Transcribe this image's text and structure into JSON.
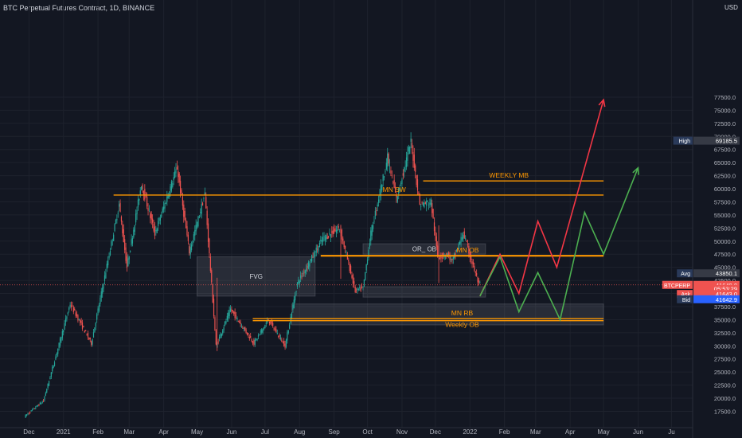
{
  "header": {
    "title": "BTC Perpetual Futures Contract, 1D, BINANCE",
    "currency": "USD"
  },
  "colors": {
    "bg": "#131722",
    "up": "#26a69a",
    "down": "#ef5350",
    "orange": "#ff9800",
    "green_path": "#4caf50",
    "red_path": "#f23645",
    "text": "#b2b5be"
  },
  "chart_data": {
    "type": "candlestick",
    "symbol": "BTCPERP",
    "x_tick_labels": [
      "Dec",
      "2021",
      "Feb",
      "Mar",
      "Apr",
      "May",
      "Jun",
      "Jul",
      "Aug",
      "Sep",
      "Oct",
      "Nov",
      "Dec",
      "2022",
      "Feb",
      "Mar",
      "Apr",
      "May",
      "Jun",
      "Ju"
    ],
    "y_tick_labels": [
      "77500.0",
      "75000.0",
      "72500.0",
      "70000.0",
      "67500.0",
      "65000.0",
      "62500.0",
      "60000.0",
      "57500.0",
      "55000.0",
      "52500.0",
      "50000.0",
      "47500.0",
      "45000.0",
      "42500.0",
      "40000.0",
      "37500.0",
      "35000.0",
      "32500.0",
      "30000.0",
      "27500.0",
      "25000.0",
      "22500.0",
      "20000.0",
      "17500.0"
    ],
    "ylim": [
      15000,
      80000
    ],
    "price_path": [
      [
        "2020-11-28",
        16500
      ],
      [
        "2020-12-15",
        19500
      ],
      [
        "2021-01-08",
        38000
      ],
      [
        "2021-01-27",
        30500
      ],
      [
        "2021-02-21",
        57000
      ],
      [
        "2021-02-28",
        45000
      ],
      [
        "2021-03-13",
        61000
      ],
      [
        "2021-03-25",
        51500
      ],
      [
        "2021-04-14",
        64000
      ],
      [
        "2021-04-25",
        48000
      ],
      [
        "2021-05-09",
        59000
      ],
      [
        "2021-05-19",
        30000
      ],
      [
        "2021-06-01",
        37000
      ],
      [
        "2021-06-22",
        30500
      ],
      [
        "2021-07-05",
        35000
      ],
      [
        "2021-07-20",
        30000
      ],
      [
        "2021-07-31",
        42000
      ],
      [
        "2021-08-23",
        50500
      ],
      [
        "2021-09-07",
        52500
      ],
      [
        "2021-09-21",
        40500
      ],
      [
        "2021-09-28",
        41000
      ],
      [
        "2021-10-05",
        51500
      ],
      [
        "2021-10-20",
        66000
      ],
      [
        "2021-10-28",
        58000
      ],
      [
        "2021-11-10",
        69000
      ],
      [
        "2021-11-18",
        57000
      ],
      [
        "2021-11-28",
        57500
      ],
      [
        "2021-12-04",
        47000
      ],
      [
        "2021-12-13",
        47500
      ],
      [
        "2021-12-17",
        46000
      ],
      [
        "2021-12-27",
        51500
      ],
      [
        "2022-01-10",
        41640
      ]
    ],
    "reference_lines": [
      {
        "label": "WEEKLY MB",
        "price": 61500
      },
      {
        "label": "MN SW",
        "price": 58800
      },
      {
        "label": "MN OB",
        "price": 47200
      },
      {
        "label": "MN RB",
        "price": 35200
      },
      {
        "label": "Weekly OB",
        "price": 34800
      }
    ],
    "zones": [
      {
        "label": "FVG",
        "from": "2021-05-01",
        "to": "2021-08-15",
        "price_low": 39500,
        "price_high": 47000
      },
      {
        "label": "OR_ OB",
        "from": "2021-09-27",
        "to": "2022-01-15",
        "price_low": 47500,
        "price_high": 49500
      },
      {
        "label": "",
        "from": "2021-09-27",
        "to": "2022-01-15",
        "price_low": 39300,
        "price_high": 41300
      },
      {
        "label": "",
        "from": "2021-07-25",
        "to": "2022-05-01",
        "price_low": 34000,
        "price_high": 38000
      }
    ],
    "scenarios": [
      {
        "color": "red",
        "points": [
          [
            "2022-01-10",
            39500
          ],
          [
            "2022-01-28",
            47500
          ],
          [
            "2022-02-14",
            40000
          ],
          [
            "2022-03-03",
            53800
          ],
          [
            "2022-03-20",
            45000
          ],
          [
            "2022-05-01",
            77000
          ]
        ]
      },
      {
        "color": "green",
        "points": [
          [
            "2022-01-10",
            39500
          ],
          [
            "2022-01-28",
            47000
          ],
          [
            "2022-02-14",
            36500
          ],
          [
            "2022-03-03",
            44000
          ],
          [
            "2022-03-23",
            35000
          ],
          [
            "2022-04-14",
            55500
          ],
          [
            "2022-05-01",
            47500
          ],
          [
            "2022-06-01",
            64000
          ]
        ]
      }
    ],
    "price_badges": [
      {
        "label": "High",
        "value": "69185.5",
        "price": 69185.5
      },
      {
        "label": "Avg",
        "value": "43850.1",
        "price": 43850.1
      },
      {
        "label": "BTCPERP",
        "value": "41640.0",
        "price": 41640
      },
      {
        "label": "",
        "value": "05:53:29",
        "price": 40900
      },
      {
        "label": "Ask",
        "value": "41643.0",
        "price": 39900
      },
      {
        "label": "Bid",
        "value": "41642.9",
        "price": 38900
      }
    ]
  }
}
